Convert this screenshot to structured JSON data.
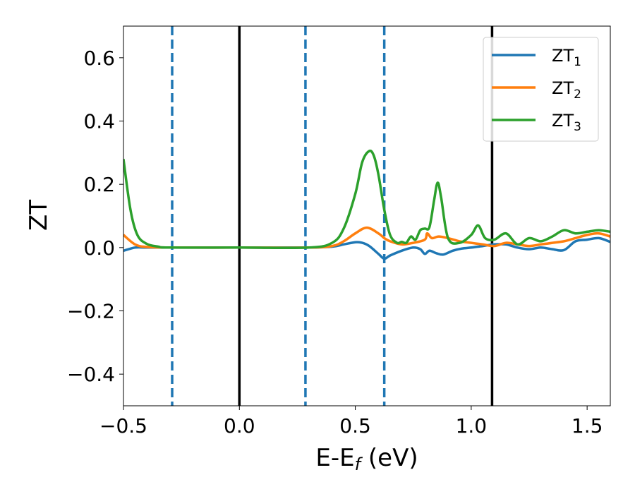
{
  "chart_data": {
    "type": "line",
    "xlabel": "E-E",
    "xlabel_sub": "f",
    "xlabel_unit": " (eV)",
    "ylabel": "ZT",
    "xlim": [
      -0.5,
      1.6
    ],
    "ylim": [
      -0.5,
      0.7
    ],
    "xticks": [
      -0.5,
      0.0,
      0.5,
      1.0,
      1.5
    ],
    "xtick_labels": [
      "−0.5",
      "0.0",
      "0.5",
      "1.0",
      "1.5"
    ],
    "yticks": [
      -0.4,
      -0.2,
      0.0,
      0.2,
      0.4,
      0.6
    ],
    "ytick_labels": [
      "−0.4",
      "−0.2",
      "0.0",
      "0.2",
      "0.4",
      "0.6"
    ],
    "grid": false,
    "legend_position": "top-right",
    "vlines": [
      {
        "x": -0.29,
        "style": "dashed",
        "color": "#1f77b4"
      },
      {
        "x": 0.0,
        "style": "solid",
        "color": "#000000"
      },
      {
        "x": 0.285,
        "style": "dashed",
        "color": "#1f77b4"
      },
      {
        "x": 0.625,
        "style": "dashed",
        "color": "#1f77b4"
      },
      {
        "x": 1.09,
        "style": "solid",
        "color": "#000000"
      }
    ],
    "series": [
      {
        "name": "ZT",
        "name_sub": "1",
        "color": "#1f77b4",
        "x": [
          -0.5,
          -0.45,
          -0.4,
          -0.3,
          0.0,
          0.3,
          0.4,
          0.45,
          0.5,
          0.53,
          0.56,
          0.6,
          0.625,
          0.65,
          0.7,
          0.75,
          0.78,
          0.8,
          0.82,
          0.85,
          0.88,
          0.92,
          0.96,
          1.0,
          1.05,
          1.1,
          1.15,
          1.2,
          1.25,
          1.3,
          1.35,
          1.4,
          1.45,
          1.5,
          1.55,
          1.6
        ],
        "y": [
          -0.01,
          0.0,
          0.0,
          0.0,
          0.0,
          0.0,
          0.003,
          0.01,
          0.017,
          0.015,
          0.005,
          -0.02,
          -0.035,
          -0.025,
          -0.01,
          0.0,
          -0.005,
          -0.02,
          -0.01,
          -0.018,
          -0.022,
          -0.01,
          -0.003,
          0.0,
          0.005,
          0.01,
          0.01,
          0.0,
          -0.005,
          0.0,
          -0.005,
          -0.008,
          0.02,
          0.025,
          0.03,
          0.018
        ]
      },
      {
        "name": "ZT",
        "name_sub": "2",
        "color": "#ff7f0e",
        "x": [
          -0.5,
          -0.45,
          -0.4,
          -0.3,
          0.0,
          0.3,
          0.4,
          0.45,
          0.5,
          0.55,
          0.6,
          0.625,
          0.65,
          0.7,
          0.75,
          0.8,
          0.81,
          0.83,
          0.86,
          0.9,
          0.95,
          1.0,
          1.05,
          1.1,
          1.15,
          1.2,
          1.25,
          1.3,
          1.35,
          1.4,
          1.45,
          1.5,
          1.55,
          1.6
        ],
        "y": [
          0.04,
          0.01,
          0.002,
          0.0,
          0.0,
          0.0,
          0.005,
          0.02,
          0.045,
          0.063,
          0.045,
          0.03,
          0.02,
          0.01,
          0.015,
          0.025,
          0.045,
          0.03,
          0.035,
          0.03,
          0.02,
          0.015,
          0.01,
          0.005,
          0.015,
          0.01,
          0.005,
          0.01,
          0.015,
          0.02,
          0.03,
          0.04,
          0.045,
          0.035
        ]
      },
      {
        "name": "ZT",
        "name_sub": "3",
        "color": "#2ca02c",
        "x": [
          -0.5,
          -0.47,
          -0.44,
          -0.4,
          -0.35,
          -0.3,
          0.0,
          0.3,
          0.4,
          0.45,
          0.5,
          0.53,
          0.56,
          0.58,
          0.6,
          0.625,
          0.65,
          0.68,
          0.7,
          0.72,
          0.74,
          0.76,
          0.78,
          0.8,
          0.82,
          0.84,
          0.855,
          0.87,
          0.9,
          0.95,
          1.0,
          1.03,
          1.06,
          1.1,
          1.15,
          1.2,
          1.25,
          1.3,
          1.35,
          1.4,
          1.45,
          1.5,
          1.55,
          1.6
        ],
        "y": [
          0.28,
          0.12,
          0.04,
          0.012,
          0.003,
          0.0,
          0.0,
          0.0,
          0.015,
          0.06,
          0.17,
          0.27,
          0.305,
          0.29,
          0.23,
          0.12,
          0.04,
          0.015,
          0.018,
          0.015,
          0.035,
          0.025,
          0.055,
          0.06,
          0.065,
          0.15,
          0.205,
          0.16,
          0.03,
          0.015,
          0.04,
          0.07,
          0.03,
          0.025,
          0.045,
          0.01,
          0.03,
          0.02,
          0.035,
          0.055,
          0.045,
          0.05,
          0.055,
          0.05
        ]
      }
    ]
  }
}
